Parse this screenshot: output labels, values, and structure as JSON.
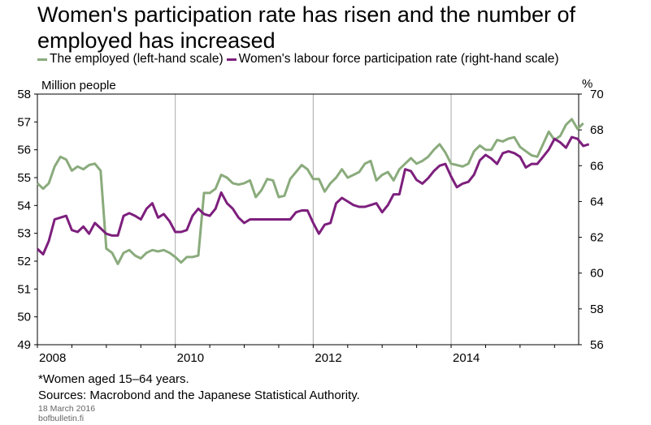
{
  "title": "Women's participation rate has risen and the number of employed has increased",
  "footnote": "*Women aged 15–64 years.",
  "sources": "Sources: Macrobond and the Japanese Statistical Authority.",
  "date": "18 March 2016",
  "site": "bofbulletin.fi",
  "colors": {
    "employed": "#8aab7c",
    "participation": "#7d1f7d",
    "grid": "#a8a8a8",
    "axis": "#000000"
  },
  "chart_data": {
    "type": "line",
    "left_axis": {
      "unit": "Million people",
      "ylim": [
        49,
        58
      ],
      "ticks": [
        "49",
        "50",
        "51",
        "52",
        "53",
        "54",
        "55",
        "56",
        "57",
        "58"
      ]
    },
    "right_axis": {
      "unit": "%",
      "ylim": [
        56,
        70
      ],
      "ticks": [
        "56",
        "58",
        "60",
        "62",
        "64",
        "66",
        "68",
        "70"
      ]
    },
    "x_axis": {
      "range": [
        2008,
        2015.85
      ],
      "tick_labels": [
        "2008",
        "2010",
        "2012",
        "2014"
      ]
    },
    "grid": {
      "vertical": true,
      "horizontal": false
    },
    "legend_position": "top",
    "series": [
      {
        "name": "The employed (left-hand scale)",
        "axis": "left",
        "start": 2008.0,
        "step_months": 1,
        "values": [
          54.8,
          54.6,
          54.8,
          55.4,
          55.75,
          55.65,
          55.25,
          55.4,
          55.3,
          55.45,
          55.5,
          55.25,
          52.45,
          52.3,
          51.9,
          52.3,
          52.4,
          52.2,
          52.1,
          52.3,
          52.4,
          52.35,
          52.4,
          52.3,
          52.15,
          51.95,
          52.15,
          52.15,
          52.2,
          54.45,
          54.45,
          54.6,
          55.1,
          55.0,
          54.8,
          54.75,
          54.8,
          54.9,
          54.3,
          54.55,
          54.95,
          54.9,
          54.3,
          54.35,
          54.95,
          55.2,
          55.45,
          55.3,
          54.95,
          54.95,
          54.5,
          54.8,
          55.0,
          55.3,
          55.0,
          55.1,
          55.2,
          55.5,
          55.6,
          54.9,
          55.1,
          55.2,
          54.9,
          55.3,
          55.5,
          55.7,
          55.5,
          55.6,
          55.75,
          56.0,
          56.2,
          55.9,
          55.5,
          55.45,
          55.4,
          55.5,
          55.95,
          56.15,
          56.0,
          56.0,
          56.35,
          56.3,
          56.4,
          56.45,
          56.1,
          55.95,
          55.8,
          55.75,
          56.2,
          56.65,
          56.35,
          56.5,
          56.9,
          57.1,
          56.75,
          56.95
        ]
      },
      {
        "name": "Women's labour force participation rate (right-hand scale)",
        "axis": "right",
        "start": 2008.0,
        "step_months": 1,
        "values": [
          61.35,
          61.05,
          61.8,
          63.0,
          63.1,
          63.2,
          62.4,
          62.3,
          62.6,
          62.2,
          62.8,
          62.5,
          62.2,
          62.1,
          62.1,
          63.2,
          63.35,
          63.2,
          63.0,
          63.6,
          63.9,
          63.1,
          63.3,
          62.9,
          62.3,
          62.3,
          62.4,
          63.2,
          63.6,
          63.3,
          63.2,
          63.6,
          64.5,
          63.9,
          63.6,
          63.1,
          62.8,
          63.0,
          63.0,
          63.0,
          63.0,
          63.0,
          63.0,
          63.0,
          63.0,
          63.4,
          63.5,
          63.5,
          62.8,
          62.2,
          62.7,
          62.8,
          63.9,
          64.2,
          64.0,
          63.8,
          63.7,
          63.7,
          63.8,
          63.9,
          63.4,
          63.8,
          64.4,
          64.4,
          65.8,
          65.7,
          65.2,
          65.0,
          65.3,
          65.7,
          66.0,
          66.1,
          65.4,
          64.8,
          65.0,
          65.1,
          65.5,
          66.3,
          66.6,
          66.4,
          66.1,
          66.7,
          66.8,
          66.7,
          66.5,
          65.9,
          66.1,
          66.1,
          66.5,
          66.9,
          67.5,
          67.3,
          67.0,
          67.6,
          67.5,
          67.1,
          67.2
        ]
      }
    ]
  }
}
